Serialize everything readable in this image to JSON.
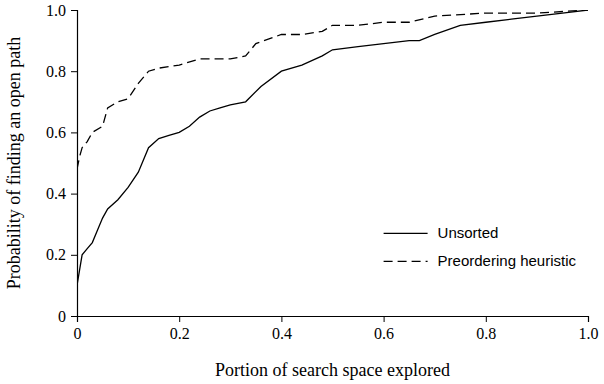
{
  "chart_data": {
    "type": "line",
    "x_label": "Portion of search space explored",
    "y_label": "Probability of finding an open path",
    "xlim": [
      0,
      1
    ],
    "ylim": [
      0,
      1
    ],
    "xticks": [
      0,
      0.2,
      0.4,
      0.6,
      0.8,
      {
        "value": 1,
        "label": "1.0"
      }
    ],
    "yticks": [
      0,
      0.2,
      0.4,
      0.6,
      0.8,
      {
        "value": 1,
        "label": "1.0"
      }
    ],
    "legend": "lower right",
    "grid": false,
    "series": [
      {
        "name": "Unsorted",
        "color": "#000000",
        "line_style": "solid",
        "x": [
          0,
          0.005,
          0.01,
          0.02,
          0.03,
          0.04,
          0.05,
          0.06,
          0.08,
          0.1,
          0.12,
          0.14,
          0.16,
          0.18,
          0.2,
          0.22,
          0.24,
          0.26,
          0.28,
          0.3,
          0.33,
          0.36,
          0.4,
          0.44,
          0.48,
          0.5,
          0.55,
          0.6,
          0.65,
          0.67,
          0.7,
          0.75,
          0.8,
          0.85,
          0.9,
          0.95,
          1.0
        ],
        "values": [
          0.1,
          0.15,
          0.2,
          0.22,
          0.24,
          0.28,
          0.32,
          0.35,
          0.38,
          0.42,
          0.47,
          0.55,
          0.58,
          0.59,
          0.6,
          0.62,
          0.65,
          0.67,
          0.68,
          0.69,
          0.7,
          0.75,
          0.8,
          0.82,
          0.85,
          0.87,
          0.88,
          0.89,
          0.9,
          0.9,
          0.92,
          0.95,
          0.96,
          0.97,
          0.98,
          0.99,
          1.0
        ]
      },
      {
        "name": "Preordering heuristic",
        "color": "#000000",
        "line_style": "dashed",
        "x": [
          0,
          0.005,
          0.01,
          0.02,
          0.03,
          0.05,
          0.06,
          0.08,
          0.1,
          0.12,
          0.14,
          0.16,
          0.2,
          0.24,
          0.3,
          0.33,
          0.35,
          0.4,
          0.44,
          0.48,
          0.5,
          0.55,
          0.6,
          0.65,
          0.7,
          0.8,
          0.9,
          1.0
        ],
        "values": [
          0.48,
          0.52,
          0.55,
          0.57,
          0.6,
          0.62,
          0.68,
          0.7,
          0.71,
          0.76,
          0.8,
          0.81,
          0.82,
          0.84,
          0.84,
          0.85,
          0.89,
          0.92,
          0.92,
          0.93,
          0.95,
          0.95,
          0.96,
          0.96,
          0.98,
          0.99,
          0.99,
          1.0
        ]
      }
    ]
  }
}
